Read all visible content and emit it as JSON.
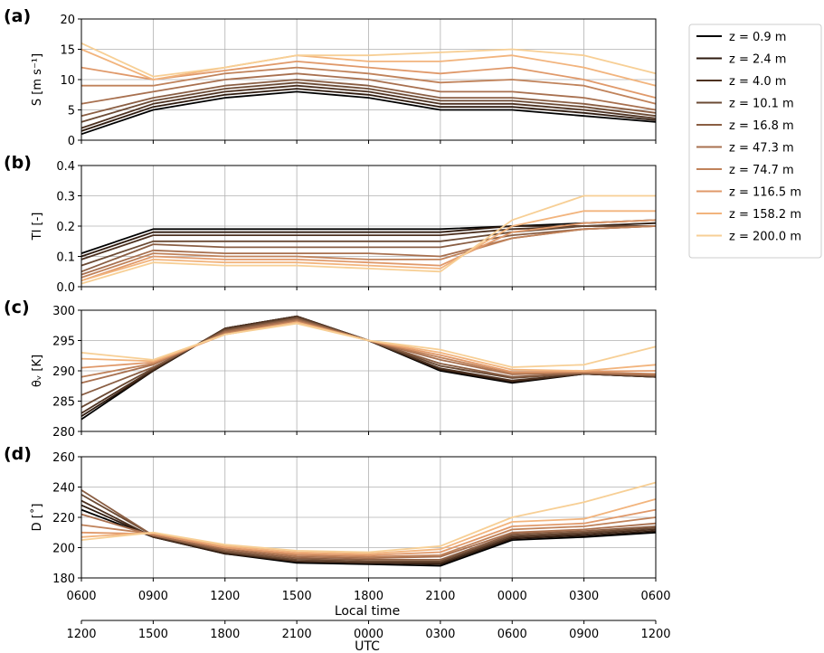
{
  "legend": {
    "placement": "right",
    "entries": [
      "z = 0.9 m",
      "z = 2.4 m",
      "z = 4.0 m",
      "z = 10.1 m",
      "z = 16.8 m",
      "z = 47.3 m",
      "z = 74.7 m",
      "z = 116.5 m",
      "z = 158.2 m",
      "z = 200.0 m"
    ],
    "colors": [
      "#000000",
      "#2e1a0e",
      "#4d3120",
      "#6b4a34",
      "#8a5e43",
      "#a8704f",
      "#c0825a",
      "#e0996a",
      "#f2b47d",
      "#f7cf95"
    ]
  },
  "x_axis": {
    "label": "Local time",
    "ticks": [
      "0600",
      "0900",
      "1200",
      "1500",
      "1800",
      "2100",
      "0000",
      "0300",
      "0600"
    ],
    "secondary_label": "UTC",
    "secondary_ticks": [
      "1200",
      "1500",
      "1800",
      "2100",
      "0000",
      "0300",
      "0600",
      "0900",
      "1200"
    ]
  },
  "chart_data": [
    {
      "type": "line",
      "panel_label": "(a)",
      "ylabel": "S [m s⁻¹]",
      "ylim": [
        0,
        20
      ],
      "yticks": [
        "0",
        "5",
        "10",
        "15",
        "20"
      ],
      "x": [
        0,
        3,
        6,
        9,
        12,
        15,
        18,
        21,
        24
      ],
      "xlim": [
        0,
        24
      ],
      "grid": true,
      "series": [
        {
          "name": "z = 0.9 m",
          "values": [
            1,
            5,
            7,
            8,
            7,
            5,
            5,
            4,
            3
          ]
        },
        {
          "name": "z = 2.4 m",
          "values": [
            1.5,
            5.5,
            7.5,
            8.5,
            7.5,
            5.5,
            5.5,
            4.5,
            3.3
          ]
        },
        {
          "name": "z = 4.0 m",
          "values": [
            2,
            6,
            8,
            9,
            8,
            6,
            6,
            5,
            3.6
          ]
        },
        {
          "name": "z = 10.1 m",
          "values": [
            3,
            6.5,
            8.5,
            9.5,
            8.5,
            6.5,
            6.5,
            5.5,
            4
          ]
        },
        {
          "name": "z = 16.8 m",
          "values": [
            4,
            7,
            9,
            10,
            9,
            7,
            7,
            6,
            4.5
          ]
        },
        {
          "name": "z = 47.3 m",
          "values": [
            6,
            8,
            10,
            11,
            10,
            8,
            8,
            7,
            5
          ]
        },
        {
          "name": "z = 74.7 m",
          "values": [
            9,
            9,
            11,
            12,
            11,
            9.5,
            10,
            9,
            6
          ]
        },
        {
          "name": "z = 116.5 m",
          "values": [
            12,
            10,
            11.5,
            13,
            12,
            11,
            12,
            10,
            7
          ]
        },
        {
          "name": "z = 158.2 m",
          "values": [
            15,
            10,
            12,
            14,
            13,
            13,
            14,
            12,
            9
          ]
        },
        {
          "name": "z = 200.0 m",
          "values": [
            16,
            10.5,
            12,
            14,
            14,
            14.5,
            15,
            14,
            11
          ]
        }
      ]
    },
    {
      "type": "line",
      "panel_label": "(b)",
      "ylabel": "TI [-]",
      "ylim": [
        0,
        0.4
      ],
      "yticks": [
        "0.0",
        "0.1",
        "0.2",
        "0.3",
        "0.4"
      ],
      "x": [
        0,
        3,
        6,
        9,
        12,
        15,
        18,
        21,
        24
      ],
      "xlim": [
        0,
        24
      ],
      "grid": true,
      "series": [
        {
          "name": "z = 0.9 m",
          "values": [
            0.11,
            0.19,
            0.19,
            0.19,
            0.19,
            0.19,
            0.2,
            0.21,
            0.22
          ]
        },
        {
          "name": "z = 2.4 m",
          "values": [
            0.1,
            0.18,
            0.18,
            0.18,
            0.18,
            0.18,
            0.2,
            0.2,
            0.21
          ]
        },
        {
          "name": "z = 4.0 m",
          "values": [
            0.09,
            0.17,
            0.17,
            0.17,
            0.17,
            0.17,
            0.19,
            0.2,
            0.2
          ]
        },
        {
          "name": "z = 10.1 m",
          "values": [
            0.07,
            0.15,
            0.15,
            0.15,
            0.15,
            0.15,
            0.18,
            0.2,
            0.2
          ]
        },
        {
          "name": "z = 16.8 m",
          "values": [
            0.05,
            0.14,
            0.13,
            0.13,
            0.13,
            0.13,
            0.17,
            0.19,
            0.2
          ]
        },
        {
          "name": "z = 47.3 m",
          "values": [
            0.04,
            0.12,
            0.11,
            0.11,
            0.11,
            0.1,
            0.16,
            0.19,
            0.2
          ]
        },
        {
          "name": "z = 74.7 m",
          "values": [
            0.03,
            0.11,
            0.1,
            0.1,
            0.09,
            0.09,
            0.16,
            0.19,
            0.2
          ]
        },
        {
          "name": "z = 116.5 m",
          "values": [
            0.02,
            0.1,
            0.09,
            0.09,
            0.08,
            0.07,
            0.18,
            0.21,
            0.22
          ]
        },
        {
          "name": "z = 158.2 m",
          "values": [
            0.02,
            0.09,
            0.08,
            0.08,
            0.07,
            0.06,
            0.2,
            0.25,
            0.25
          ]
        },
        {
          "name": "z = 200.0 m",
          "values": [
            0.01,
            0.08,
            0.07,
            0.07,
            0.06,
            0.05,
            0.22,
            0.3,
            0.3
          ]
        }
      ]
    },
    {
      "type": "line",
      "panel_label": "(c)",
      "ylabel": "θᵥ [K]",
      "ylim": [
        280,
        300
      ],
      "yticks": [
        "280",
        "285",
        "290",
        "295",
        "300"
      ],
      "x": [
        0,
        3,
        6,
        9,
        12,
        15,
        18,
        21,
        24
      ],
      "xlim": [
        0,
        24
      ],
      "grid": true,
      "series": [
        {
          "name": "z = 0.9 m",
          "values": [
            282,
            290,
            297,
            299,
            295,
            290,
            288,
            289.5,
            289
          ]
        },
        {
          "name": "z = 2.4 m",
          "values": [
            282.5,
            290,
            297,
            299,
            295,
            290.2,
            288.2,
            289.5,
            289
          ]
        },
        {
          "name": "z = 4.0 m",
          "values": [
            283,
            290.2,
            297,
            299,
            295,
            290.4,
            288.4,
            289.5,
            289
          ]
        },
        {
          "name": "z = 10.1 m",
          "values": [
            284,
            290.4,
            296.8,
            298.8,
            295,
            290.8,
            288.8,
            289.6,
            289.1
          ]
        },
        {
          "name": "z = 16.8 m",
          "values": [
            286,
            290.6,
            296.6,
            298.6,
            295,
            291.2,
            289,
            289.6,
            289.2
          ]
        },
        {
          "name": "z = 47.3 m",
          "values": [
            288,
            291,
            296.4,
            298.4,
            295,
            291.8,
            289.4,
            289.7,
            289.3
          ]
        },
        {
          "name": "z = 74.7 m",
          "values": [
            289,
            291.2,
            296.2,
            298.2,
            295,
            292.2,
            289.6,
            289.8,
            289.5
          ]
        },
        {
          "name": "z = 116.5 m",
          "values": [
            290.5,
            291.4,
            296,
            298,
            295,
            292.6,
            289.8,
            289.9,
            290
          ]
        },
        {
          "name": "z = 158.2 m",
          "values": [
            292,
            291.6,
            296,
            298,
            295,
            293,
            290.2,
            290,
            291
          ]
        },
        {
          "name": "z = 200.0 m",
          "values": [
            293,
            291.8,
            296,
            297.8,
            295,
            293.5,
            290.6,
            291,
            294
          ]
        }
      ]
    },
    {
      "type": "line",
      "panel_label": "(d)",
      "ylabel": "D [˚]",
      "ylim": [
        180,
        260
      ],
      "yticks": [
        "180",
        "200",
        "220",
        "240",
        "260"
      ],
      "x": [
        0,
        3,
        6,
        9,
        12,
        15,
        18,
        21,
        24
      ],
      "xlim": [
        0,
        24
      ],
      "grid": true,
      "series": [
        {
          "name": "z = 0.9 m",
          "values": [
            225,
            207,
            196,
            190,
            189,
            188,
            205,
            207,
            210
          ]
        },
        {
          "name": "z = 2.4 m",
          "values": [
            228,
            207,
            196,
            191,
            190,
            189,
            206,
            208,
            211
          ]
        },
        {
          "name": "z = 4.0 m",
          "values": [
            231,
            207,
            197,
            191,
            190,
            190,
            207,
            209,
            212
          ]
        },
        {
          "name": "z = 10.1 m",
          "values": [
            235,
            208,
            197,
            192,
            191,
            191,
            208,
            210,
            213
          ]
        },
        {
          "name": "z = 16.8 m",
          "values": [
            238,
            208,
            198,
            193,
            192,
            192,
            209,
            211,
            214
          ]
        },
        {
          "name": "z = 47.3 m",
          "values": [
            222,
            208,
            199,
            194,
            193,
            194,
            210,
            212,
            216
          ]
        },
        {
          "name": "z = 74.7 m",
          "values": [
            215,
            209,
            200,
            195,
            194,
            195,
            212,
            214,
            220
          ]
        },
        {
          "name": "z = 116.5 m",
          "values": [
            210,
            209,
            200,
            196,
            195,
            197,
            214,
            216,
            225
          ]
        },
        {
          "name": "z = 158.2 m",
          "values": [
            207,
            210,
            201,
            197,
            196,
            199,
            217,
            219,
            232
          ]
        },
        {
          "name": "z = 200.0 m",
          "values": [
            205,
            210,
            202,
            198,
            197,
            201,
            220,
            230,
            243
          ]
        }
      ]
    }
  ]
}
